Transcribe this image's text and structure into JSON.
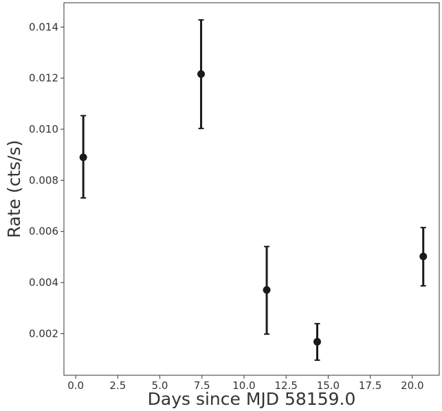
{
  "chart_data": {
    "type": "scatter",
    "title": "",
    "xlabel": "Days since MJD 58159.0",
    "ylabel": "Rate (cts/s)",
    "xlim": [
      -0.7,
      21.6
    ],
    "ylim": [
      0.00037,
      0.01495
    ],
    "grid": false,
    "legend": "none",
    "x_ticks": [
      0.0,
      2.5,
      5.0,
      7.5,
      10.0,
      12.5,
      15.0,
      17.5,
      20.0
    ],
    "x_tick_labels": [
      "0.0",
      "2.5",
      "5.0",
      "7.5",
      "10.0",
      "12.5",
      "15.0",
      "17.5",
      "20.0"
    ],
    "y_ticks": [
      0.002,
      0.004,
      0.006,
      0.008,
      0.01,
      0.012,
      0.014
    ],
    "y_tick_labels": [
      "0.002",
      "0.004",
      "0.006",
      "0.008",
      "0.010",
      "0.012",
      "0.014"
    ],
    "series": [
      {
        "x": [
          0.45,
          7.45,
          11.35,
          14.35,
          20.65
        ],
        "y": [
          0.0089,
          0.01216,
          0.00371,
          0.00168,
          0.00502
        ],
        "y_err_low": [
          0.00159,
          0.00213,
          0.00173,
          0.00072,
          0.00115
        ],
        "y_err_high": [
          0.00163,
          0.00212,
          0.0017,
          0.00071,
          0.00113
        ],
        "color": "#1a1a1a"
      }
    ]
  }
}
